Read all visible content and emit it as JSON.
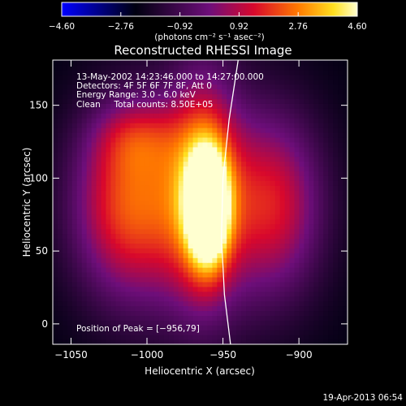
{
  "chart_data": {
    "type": "heatmap",
    "title": "Reconstructed RHESSI Image",
    "xlabel": "Heliocentric X (arcsec)",
    "ylabel": "Heliocentric Y (arcsec)",
    "xlim": [
      -1062,
      -868
    ],
    "ylim": [
      -14,
      181
    ],
    "xticks": [
      -1050,
      -1000,
      -950,
      -900
    ],
    "xtick_labels": [
      "−1050",
      "−1000",
      "−950",
      "−900"
    ],
    "yticks": [
      0,
      50,
      100,
      150
    ],
    "ytick_labels": [
      "0",
      "50",
      "100",
      "150"
    ],
    "colorbar": {
      "min": -4.6,
      "max": 4.6,
      "ticks": [
        -4.6,
        -2.76,
        -0.92,
        0.92,
        2.76,
        4.6
      ],
      "tick_labels": [
        "−4.60",
        "−2.76",
        "−0.92",
        "0.92",
        "2.76",
        "4.60"
      ],
      "unit_label": "(photons cm⁻² s⁻¹ asec⁻²)"
    },
    "annotations": [
      "13-May-2002 14:23:46.000 to 14:27:00.000",
      "Detectors: 4F 5F 6F 7F 8F, Att 0",
      "Energy Range: 3.0 - 6.0 keV",
      "Clean     Total counts: 8.50E+05"
    ],
    "peak_label": "Position of Peak = [−956,79]",
    "peak": [
      -956,
      79
    ],
    "limb_curve": [
      [
        -945,
        -14
      ],
      [
        -949,
        20
      ],
      [
        -951,
        60
      ],
      [
        -950,
        100
      ],
      [
        -946,
        140
      ],
      [
        -940,
        181
      ]
    ],
    "sources": [
      {
        "x": -960,
        "y": 80,
        "amp": 4.6,
        "sx": 9,
        "sy": 26
      },
      {
        "x": -963,
        "y": 95,
        "amp": 2.2,
        "sx": 16,
        "sy": 55
      },
      {
        "x": -1013,
        "y": 82,
        "amp": 2.2,
        "sx": 26,
        "sy": 44
      },
      {
        "x": -915,
        "y": 82,
        "amp": 1.7,
        "sx": 22,
        "sy": 42
      },
      {
        "x": -965,
        "y": 82,
        "amp": 1.5,
        "sx": 48,
        "sy": 62
      },
      {
        "x": -1006,
        "y": 128,
        "amp": 1.0,
        "sx": 20,
        "sy": 18
      }
    ]
  },
  "footer": {
    "timestamp": "19-Apr-2013 06:54"
  }
}
